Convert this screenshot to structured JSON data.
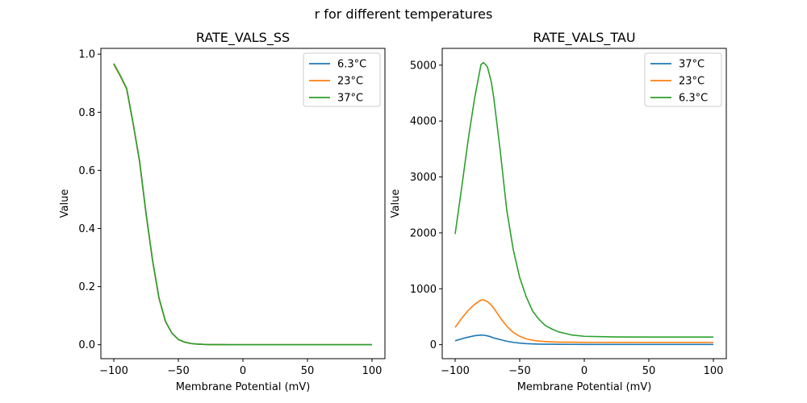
{
  "figure": {
    "suptitle": "r for different temperatures"
  },
  "chart_data": [
    {
      "type": "line",
      "title": "RATE_VALS_SS",
      "xlabel": "Membrane Potential (mV)",
      "ylabel": "Value",
      "xlim": [
        -110,
        110
      ],
      "ylim": [
        -0.048,
        1.02
      ],
      "xticks": [
        -100,
        -50,
        0,
        50,
        100
      ],
      "yticks": [
        0.0,
        0.2,
        0.4,
        0.6,
        0.8,
        1.0
      ],
      "xtick_labels": [
        "−100",
        "−50",
        "0",
        "50",
        "100"
      ],
      "ytick_labels": [
        "0.0",
        "0.2",
        "0.4",
        "0.6",
        "0.8",
        "1.0"
      ],
      "grid": false,
      "legend": "top-right",
      "x": [
        -100,
        -95,
        -90,
        -85,
        -80,
        -75,
        -70,
        -65,
        -60,
        -55,
        -50,
        -45,
        -40,
        -35,
        -30,
        -25,
        -20,
        -10,
        0,
        25,
        50,
        75,
        100
      ],
      "series": [
        {
          "name": "6.3°C",
          "color": "#1f77b4",
          "values": [
            0.965,
            0.925,
            0.88,
            0.76,
            0.63,
            0.45,
            0.29,
            0.16,
            0.08,
            0.04,
            0.018,
            0.009,
            0.004,
            0.002,
            0.001,
            0.0005,
            0.0003,
            0.0001,
            0.0,
            0.0,
            0.0,
            0.0,
            0.0
          ]
        },
        {
          "name": "23°C",
          "color": "#ff7f0e",
          "values": [
            0.965,
            0.925,
            0.88,
            0.76,
            0.63,
            0.45,
            0.29,
            0.16,
            0.08,
            0.04,
            0.018,
            0.009,
            0.004,
            0.002,
            0.001,
            0.0005,
            0.0003,
            0.0001,
            0.0,
            0.0,
            0.0,
            0.0,
            0.0
          ]
        },
        {
          "name": "37°C",
          "color": "#2ca02c",
          "values": [
            0.968,
            0.927,
            0.882,
            0.762,
            0.632,
            0.452,
            0.292,
            0.162,
            0.081,
            0.04,
            0.018,
            0.009,
            0.004,
            0.002,
            0.001,
            0.0005,
            0.0003,
            0.0001,
            0.0,
            0.0,
            0.0,
            0.0,
            0.0
          ]
        }
      ]
    },
    {
      "type": "line",
      "title": "RATE_VALS_TAU",
      "xlabel": "Membrane Potential (mV)",
      "ylabel": "Value",
      "xlim": [
        -110,
        110
      ],
      "ylim": [
        -250,
        5300
      ],
      "xticks": [
        -100,
        -50,
        0,
        50,
        100
      ],
      "yticks": [
        0,
        1000,
        2000,
        3000,
        4000,
        5000
      ],
      "xtick_labels": [
        "−100",
        "−50",
        "0",
        "50",
        "100"
      ],
      "ytick_labels": [
        "0",
        "1000",
        "2000",
        "3000",
        "4000",
        "5000"
      ],
      "grid": false,
      "legend": "top-right",
      "x": [
        -100,
        -95,
        -90,
        -85,
        -80,
        -78,
        -75,
        -72,
        -70,
        -65,
        -60,
        -55,
        -50,
        -45,
        -40,
        -35,
        -30,
        -25,
        -20,
        -10,
        0,
        25,
        50,
        75,
        100
      ],
      "series": [
        {
          "name": "37°C",
          "color": "#1f77b4",
          "values": [
            70,
            105,
            135,
            160,
            172,
            170,
            158,
            138,
            120,
            90,
            62,
            42,
            28,
            19,
            14,
            11,
            9,
            8,
            7,
            6,
            5,
            5,
            5,
            5,
            5
          ]
        },
        {
          "name": "23°C",
          "color": "#ff7f0e",
          "values": [
            310,
            470,
            610,
            720,
            800,
            800,
            770,
            710,
            650,
            480,
            330,
            220,
            150,
            105,
            80,
            65,
            55,
            50,
            47,
            44,
            42,
            42,
            42,
            42,
            42
          ]
        },
        {
          "name": "6.3°C",
          "color": "#2ca02c",
          "values": [
            1980,
            2800,
            3650,
            4400,
            5010,
            5045,
            4970,
            4700,
            4400,
            3450,
            2400,
            1700,
            1200,
            860,
            600,
            450,
            340,
            280,
            230,
            175,
            150,
            138,
            136,
            136,
            136
          ]
        }
      ]
    }
  ]
}
